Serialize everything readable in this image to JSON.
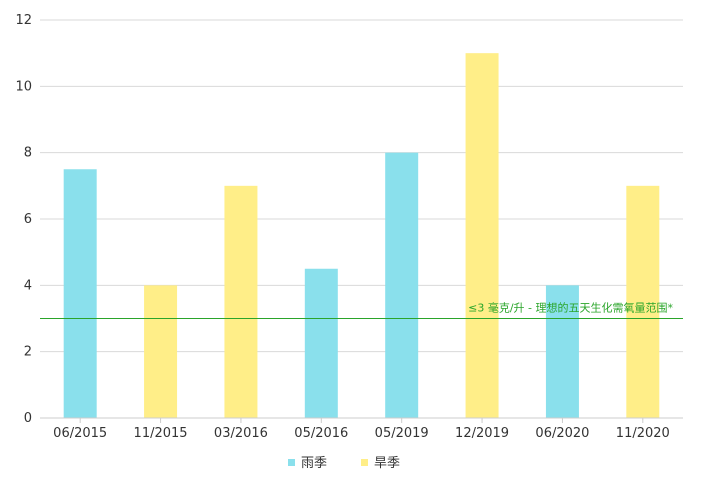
{
  "chart_data": {
    "type": "bar",
    "categories": [
      "06/2015",
      "11/2015",
      "03/2016",
      "05/2016",
      "05/2019",
      "12/2019",
      "06/2020",
      "11/2020"
    ],
    "values": [
      7.5,
      4,
      7,
      4.5,
      8,
      11,
      4,
      7
    ],
    "season": [
      "雨季",
      "旱季",
      "旱季",
      "雨季",
      "雨季",
      "旱季",
      "雨季",
      "旱季"
    ],
    "ylim": [
      0,
      12
    ],
    "yticks": [
      0,
      2,
      4,
      6,
      8,
      10,
      12
    ],
    "grid": true,
    "reference_line": {
      "value": 3,
      "label": "≤3 毫克/升 - 理想的五天生化需氧量范围*",
      "color": "#2aa52a"
    },
    "legend": {
      "placement": "bottom",
      "items": [
        {
          "name": "雨季",
          "color": "#8ae0ec"
        },
        {
          "name": "旱季",
          "color": "#ffee88"
        }
      ]
    }
  }
}
